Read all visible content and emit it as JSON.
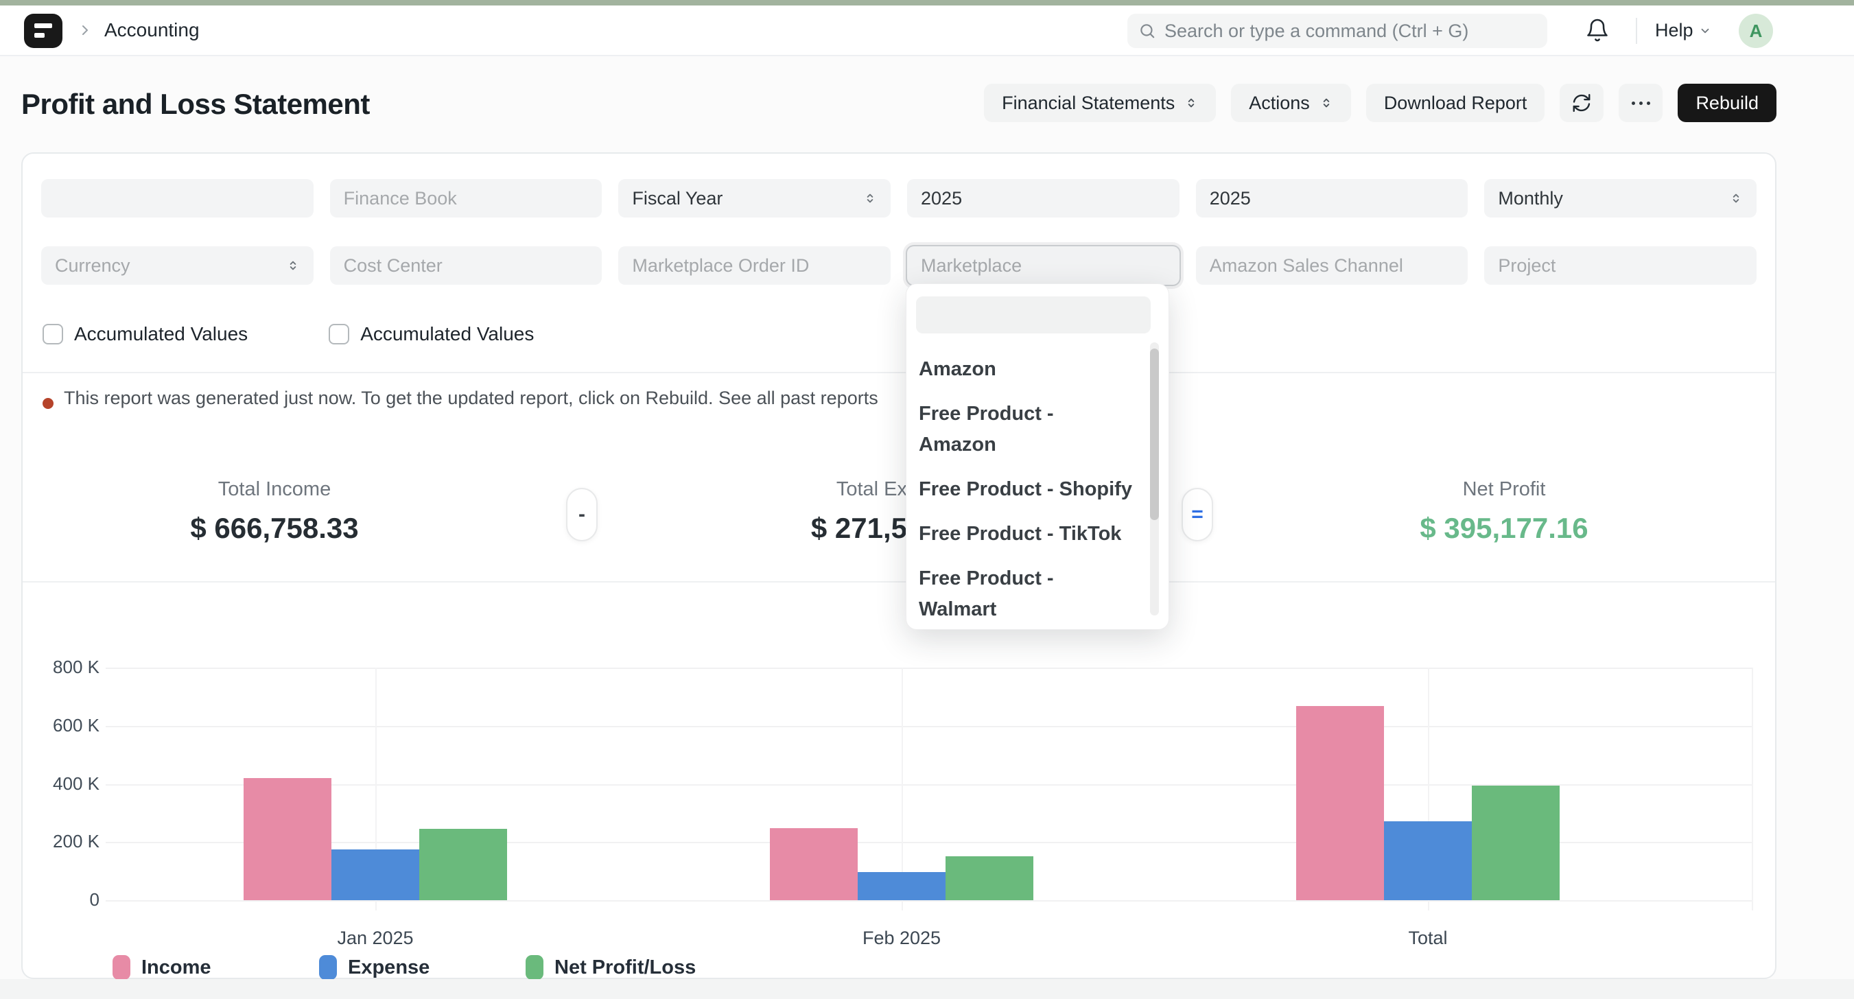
{
  "colors": {
    "top_strip": "#a2b39e",
    "alert_dot": "#b5432a",
    "net_profit_green": "#68b98a",
    "income_pink": "#e78ba6",
    "expense_blue": "#4e8bd8",
    "net_green": "#6aba7c"
  },
  "topbar": {
    "breadcrumb": "Accounting",
    "search_placeholder": "Search or type a command (Ctrl + G)",
    "help_label": "Help",
    "avatar_letter": "A"
  },
  "page": {
    "title": "Profit and Loss Statement",
    "toolbar": {
      "financial_statements_label": "Financial Statements",
      "actions_label": "Actions",
      "download_report_label": "Download Report",
      "rebuild_label": "Rebuild"
    }
  },
  "filters": {
    "row1": [
      {
        "name": "empty-filter",
        "control": "input",
        "value": "",
        "placeholder": ""
      },
      {
        "name": "finance-book",
        "control": "input",
        "value": "",
        "placeholder": "Finance Book"
      },
      {
        "name": "period-basis",
        "control": "select",
        "value": "Fiscal Year"
      },
      {
        "name": "start-year",
        "control": "input",
        "value": "2025",
        "placeholder": ""
      },
      {
        "name": "end-year",
        "control": "input",
        "value": "2025",
        "placeholder": ""
      },
      {
        "name": "periodicity",
        "control": "select",
        "value": "Monthly"
      }
    ],
    "row2": [
      {
        "name": "currency",
        "control": "select",
        "value": "",
        "placeholder": "Currency"
      },
      {
        "name": "cost-center",
        "control": "input",
        "value": "",
        "placeholder": "Cost Center"
      },
      {
        "name": "marketplace-order-id",
        "control": "input",
        "value": "",
        "placeholder": "Marketplace Order ID"
      },
      {
        "name": "marketplace",
        "control": "input",
        "value": "",
        "placeholder": "Marketplace",
        "focused": true
      },
      {
        "name": "amazon-sales-channel",
        "control": "input",
        "value": "",
        "placeholder": "Amazon Sales Channel"
      },
      {
        "name": "project",
        "control": "input",
        "value": "",
        "placeholder": "Project"
      }
    ],
    "checkboxes": [
      "Accumulated Values",
      "Accumulated Values"
    ]
  },
  "marketplace_dropdown": {
    "search_value": "",
    "items": [
      {
        "label": "Amazon",
        "lines": [
          "Amazon"
        ]
      },
      {
        "label": "Free Product - Amazon",
        "lines": [
          "Free Product -",
          "Amazon"
        ]
      },
      {
        "label": "Free Product - Shopify",
        "lines": [
          "Free Product - Shopify"
        ]
      },
      {
        "label": "Free Product - TikTok",
        "lines": [
          "Free Product - TikTok"
        ]
      },
      {
        "label": "Free Product - Walmart",
        "lines": [
          "Free Product -",
          "Walmart"
        ]
      }
    ]
  },
  "alert": {
    "message": "This report was generated just now. To get the updated report, click on Rebuild.",
    "link_text": "See all past reports"
  },
  "summary": {
    "income_label": "Total Income",
    "income_value": "$ 666,758.33",
    "expense_label_visible": "Total Ex",
    "expense_value_visible": "$ 271,5",
    "net_label": "Net Profit",
    "net_value": "$ 395,177.16",
    "minus_symbol": "-",
    "equals_symbol": "="
  },
  "chart_data": {
    "type": "bar",
    "title": "",
    "xlabel": "",
    "ylabel": "",
    "categories": [
      "Jan 2025",
      "Feb 2025",
      "Total"
    ],
    "series": [
      {
        "name": "Income",
        "color": "#e78ba6",
        "values": [
          419000,
          247758,
          666758
        ]
      },
      {
        "name": "Expense",
        "color": "#4e8bd8",
        "values": [
          174000,
          97581,
          271581
        ]
      },
      {
        "name": "Net Profit/Loss",
        "color": "#6aba7c",
        "values": [
          245000,
          150177,
          395177
        ]
      }
    ],
    "ylim": [
      0,
      800000
    ],
    "yticks": [
      {
        "value": 0,
        "label": "0"
      },
      {
        "value": 200000,
        "label": "200 K"
      },
      {
        "value": 400000,
        "label": "400 K"
      },
      {
        "value": 600000,
        "label": "600 K"
      },
      {
        "value": 800000,
        "label": "800 K"
      }
    ],
    "grid": true,
    "legend_position": "bottom"
  }
}
